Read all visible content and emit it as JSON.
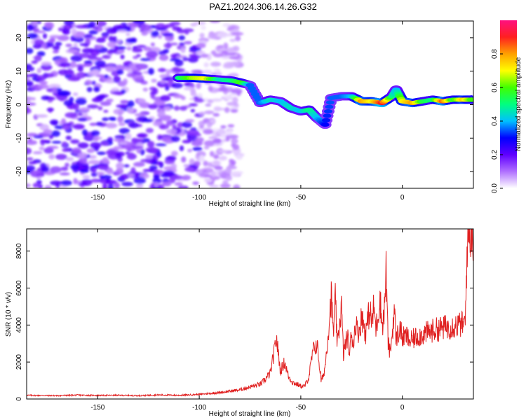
{
  "title": "PAZ1.2024.306.14.26.G32",
  "chart_data": [
    {
      "type": "heatmap",
      "xlabel": "Height of straight line (km)",
      "ylabel": "Frequency (Hz)",
      "xlim": [
        -185,
        35
      ],
      "ylim": [
        -25,
        25
      ],
      "xticks": [
        -150,
        -100,
        -50,
        0
      ],
      "yticks": [
        -20,
        -10,
        0,
        10,
        20
      ],
      "colorbar": {
        "label": "Normalized spectral amplitude",
        "range": [
          0,
          1
        ],
        "ticks": [
          0.0,
          0.2,
          0.4,
          0.6,
          0.8
        ],
        "tick_labels": [
          "0.0",
          "0.2",
          "0.4",
          "0.6",
          "0.8"
        ],
        "colors": [
          "#ffffff",
          "#b070ff",
          "#6000ff",
          "#0000ff",
          "#00c0ff",
          "#00ff80",
          "#40ff00",
          "#ffff00",
          "#ffa000",
          "#ff2020",
          "#ff1080"
        ]
      },
      "noise_region": {
        "x": [
          -185,
          -100
        ],
        "y": [
          -25,
          25
        ],
        "level": 0.2
      },
      "signal_track": [
        {
          "x": -110,
          "y": 8,
          "level": 0.5
        },
        {
          "x": -103,
          "y": 8,
          "level": 0.65
        },
        {
          "x": -97,
          "y": 7.8,
          "level": 0.7
        },
        {
          "x": -90,
          "y": 7.5,
          "level": 0.45
        },
        {
          "x": -84,
          "y": 7.2,
          "level": 0.5
        },
        {
          "x": -79,
          "y": 6.5,
          "level": 0.6
        },
        {
          "x": -75,
          "y": 5.8,
          "level": 0.35
        },
        {
          "x": -70,
          "y": 0.5,
          "level": 0.35
        },
        {
          "x": -65,
          "y": 1.5,
          "level": 0.45
        },
        {
          "x": -60,
          "y": 1,
          "level": 0.4
        },
        {
          "x": -55,
          "y": -1,
          "level": 0.45
        },
        {
          "x": -50,
          "y": -2,
          "level": 0.4
        },
        {
          "x": -46,
          "y": -1.5,
          "level": 0.5
        },
        {
          "x": -42,
          "y": -4,
          "level": 0.4
        },
        {
          "x": -38,
          "y": -6,
          "level": 0.3
        },
        {
          "x": -35,
          "y": 2,
          "level": 0.35
        },
        {
          "x": -30,
          "y": 2.5,
          "level": 0.35
        },
        {
          "x": -25,
          "y": 2.5,
          "level": 0.4
        },
        {
          "x": -20,
          "y": 1,
          "level": 0.8
        },
        {
          "x": -15,
          "y": 1,
          "level": 0.7
        },
        {
          "x": -10,
          "y": 0.5,
          "level": 0.9
        },
        {
          "x": -5,
          "y": 2.5,
          "level": 0.5
        },
        {
          "x": -3,
          "y": 4.5,
          "level": 0.4
        },
        {
          "x": 0,
          "y": 1,
          "level": 0.7
        },
        {
          "x": 5,
          "y": 0.5,
          "level": 0.8
        },
        {
          "x": 10,
          "y": 1,
          "level": 0.55
        },
        {
          "x": 15,
          "y": 1.5,
          "level": 0.5
        },
        {
          "x": 20,
          "y": 1,
          "level": 0.85
        },
        {
          "x": 25,
          "y": 1.5,
          "level": 0.55
        },
        {
          "x": 30,
          "y": 1.5,
          "level": 0.75
        },
        {
          "x": 34,
          "y": 1.5,
          "level": 0.6
        }
      ]
    },
    {
      "type": "line",
      "xlabel": "Height of straight line (km)",
      "ylabel": "SNR (10 * v/v)",
      "xlim": [
        -185,
        35
      ],
      "ylim": [
        0,
        9200
      ],
      "xticks": [
        -150,
        -100,
        -50,
        0
      ],
      "yticks": [
        0,
        2000,
        4000,
        6000,
        8000
      ],
      "color": "#e02020",
      "x": [
        -185,
        -170,
        -160,
        -150,
        -140,
        -130,
        -120,
        -110,
        -100,
        -95,
        -90,
        -85,
        -80,
        -75,
        -70,
        -68,
        -65,
        -63,
        -62,
        -61,
        -60,
        -58,
        -56,
        -54,
        -52,
        -50,
        -48,
        -46,
        -44,
        -42,
        -41,
        -40,
        -39,
        -38,
        -37,
        -36,
        -35,
        -34,
        -33,
        -32,
        -31,
        -30,
        -29,
        -28,
        -27,
        -26,
        -25,
        -24,
        -23,
        -22,
        -21,
        -20,
        -19,
        -18,
        -17,
        -16,
        -15,
        -14,
        -13,
        -12,
        -11,
        -10,
        -9,
        -8,
        -7,
        -6,
        -5,
        -4,
        -3,
        -2,
        -1,
        0,
        2,
        4,
        6,
        8,
        10,
        15,
        20,
        25,
        30,
        31,
        31.5,
        32,
        33,
        34,
        35
      ],
      "y": [
        200,
        180,
        210,
        190,
        200,
        180,
        220,
        200,
        250,
        300,
        350,
        420,
        500,
        650,
        800,
        1000,
        1400,
        2600,
        3300,
        2400,
        1500,
        2000,
        1200,
        900,
        800,
        700,
        700,
        1200,
        2600,
        3000,
        2000,
        1000,
        1200,
        1800,
        3000,
        4200,
        5600,
        3500,
        5400,
        2800,
        4000,
        5000,
        2400,
        3000,
        3400,
        2500,
        3500,
        3000,
        4200,
        3600,
        3800,
        4500,
        4000,
        3600,
        4300,
        4800,
        4100,
        5000,
        3800,
        4500,
        5500,
        4000,
        4500,
        6900,
        3000,
        2500,
        3500,
        4800,
        3200,
        3600,
        3800,
        3300,
        3400,
        3100,
        3300,
        3400,
        3500,
        3700,
        3850,
        3950,
        4050,
        4100,
        6500,
        8500,
        8900,
        9100,
        9000
      ]
    }
  ]
}
